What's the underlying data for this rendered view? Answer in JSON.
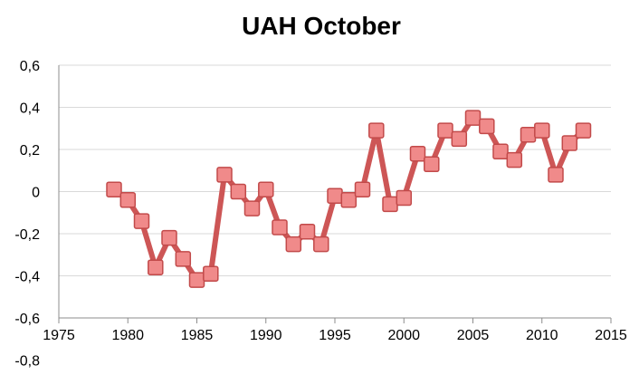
{
  "chart_data": {
    "type": "line",
    "title": "UAH October",
    "xlabel": "",
    "ylabel": "",
    "xlim": [
      1975,
      2015
    ],
    "ylim": [
      -0.6,
      0.6
    ],
    "x_ticks": [
      "1975",
      "1980",
      "1985",
      "1990",
      "1995",
      "2000",
      "2005",
      "2010",
      "2015"
    ],
    "y_ticks": [
      "0,6",
      "0,4",
      "0,2",
      "0",
      "-0,2",
      "-0,4",
      "-0,6",
      "-0,8"
    ],
    "grid": true,
    "legend": "none",
    "colors": {
      "line": "#cd5656",
      "marker_fill": "#f08a8a",
      "marker_stroke": "#c24a4a"
    },
    "series": [
      {
        "x": [
          1979,
          1980,
          1981,
          1982,
          1983,
          1984,
          1985,
          1986,
          1987,
          1988,
          1989,
          1990,
          1991,
          1992,
          1993,
          1994,
          1995,
          1996,
          1997,
          1998,
          1999,
          2000,
          2001,
          2002,
          2003,
          2004,
          2005,
          2006,
          2007,
          2008,
          2009,
          2010,
          2011,
          2012,
          2013
        ],
        "values": [
          0.01,
          -0.04,
          -0.14,
          -0.36,
          -0.22,
          -0.32,
          -0.42,
          -0.39,
          0.08,
          0.0,
          -0.08,
          0.01,
          -0.17,
          -0.25,
          -0.19,
          -0.25,
          -0.02,
          -0.04,
          0.01,
          0.29,
          -0.06,
          -0.03,
          0.18,
          0.13,
          0.29,
          0.25,
          0.35,
          0.31,
          0.19,
          0.15,
          0.27,
          0.29,
          0.08,
          0.23,
          0.29
        ]
      }
    ]
  }
}
